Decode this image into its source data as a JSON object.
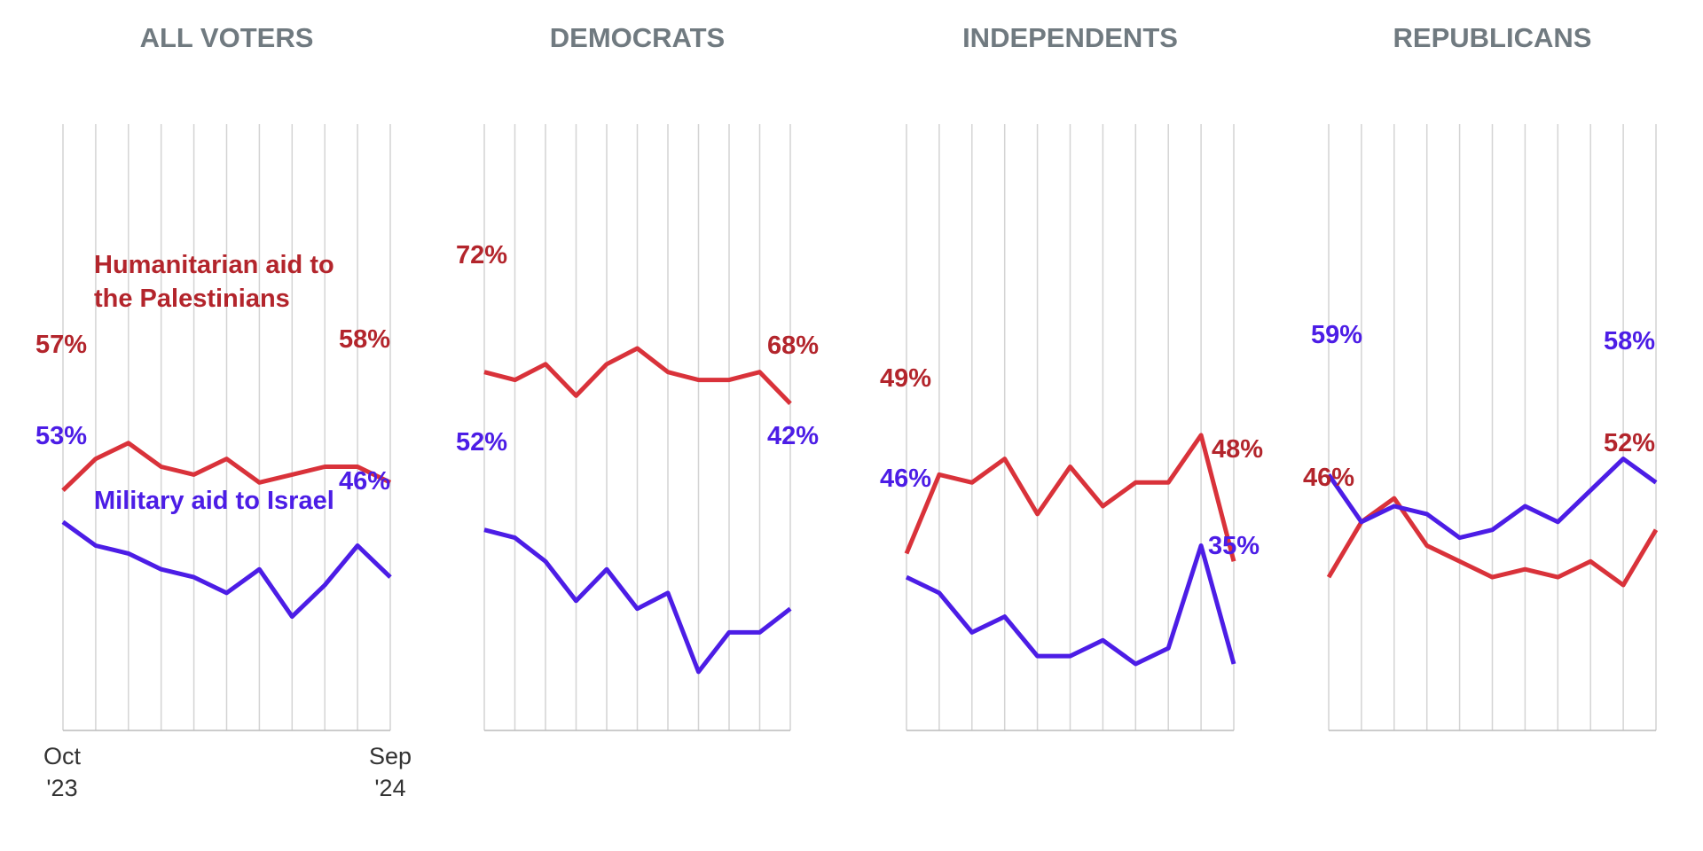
{
  "colors": {
    "humanitarian": "#d9323a",
    "humanitarian_text": "#b3252c",
    "military": "#4c1de6"
  },
  "x_ticks": {
    "start": [
      "Oct",
      "'23"
    ],
    "end": [
      "Sep",
      "'24"
    ]
  },
  "legend": {
    "humanitarian": [
      "Humanitarian aid to",
      "the Palestinians"
    ],
    "military": "Military aid to Israel"
  },
  "chart_data": [
    {
      "type": "line",
      "title": "ALL VOTERS",
      "x": [
        "Oct '23",
        "",
        "",
        "",
        "",
        "",
        "",
        "",
        "",
        "",
        "Sep '24"
      ],
      "ylim": [
        0,
        100
      ],
      "series": [
        {
          "name": "Humanitarian aid to the Palestinians",
          "values": [
            57,
            61,
            63,
            60,
            59,
            61,
            58,
            59,
            60,
            60,
            58
          ]
        },
        {
          "name": "Military aid to Israel",
          "values": [
            53,
            50,
            49,
            47,
            46,
            44,
            47,
            41,
            45,
            50,
            46
          ]
        }
      ],
      "labels": {
        "humanitarian": [
          "57%",
          "58%"
        ],
        "military": [
          "53%",
          "46%"
        ]
      }
    },
    {
      "type": "line",
      "title": "DEMOCRATS",
      "x": [
        "",
        "",
        "",
        "",
        "",
        "",
        "",
        "",
        "",
        "",
        ""
      ],
      "ylim": [
        0,
        100
      ],
      "series": [
        {
          "values": [
            72,
            71,
            73,
            69,
            73,
            75,
            72,
            71,
            71,
            72,
            68
          ]
        },
        {
          "values": [
            52,
            51,
            48,
            43,
            47,
            42,
            44,
            34,
            39,
            39,
            42
          ]
        }
      ],
      "labels": {
        "humanitarian": [
          "72%",
          "68%"
        ],
        "military": [
          "52%",
          "42%"
        ]
      }
    },
    {
      "type": "line",
      "title": "INDEPENDENTS",
      "x": [
        "",
        "",
        "",
        "",
        "",
        "",
        "",
        "",
        "",
        "",
        ""
      ],
      "ylim": [
        0,
        100
      ],
      "series": [
        {
          "values": [
            49,
            59,
            58,
            61,
            54,
            60,
            55,
            58,
            58,
            64,
            48
          ]
        },
        {
          "values": [
            46,
            44,
            39,
            41,
            36,
            36,
            38,
            35,
            37,
            50,
            35
          ]
        }
      ],
      "labels": {
        "humanitarian": [
          "49%",
          "48%"
        ],
        "military": [
          "46%",
          "35%"
        ]
      }
    },
    {
      "type": "line",
      "title": "REPUBLICANS",
      "x": [
        "",
        "",
        "",
        "",
        "",
        "",
        "",
        "",
        "",
        "",
        ""
      ],
      "ylim": [
        0,
        100
      ],
      "series": [
        {
          "values": [
            46,
            53,
            56,
            50,
            48,
            46,
            47,
            46,
            48,
            45,
            52
          ]
        },
        {
          "values": [
            59,
            53,
            55,
            54,
            51,
            52,
            55,
            53,
            57,
            61,
            58
          ]
        }
      ],
      "labels": {
        "humanitarian": [
          "46%",
          "52%"
        ],
        "military": [
          "59%",
          "58%"
        ]
      }
    }
  ]
}
